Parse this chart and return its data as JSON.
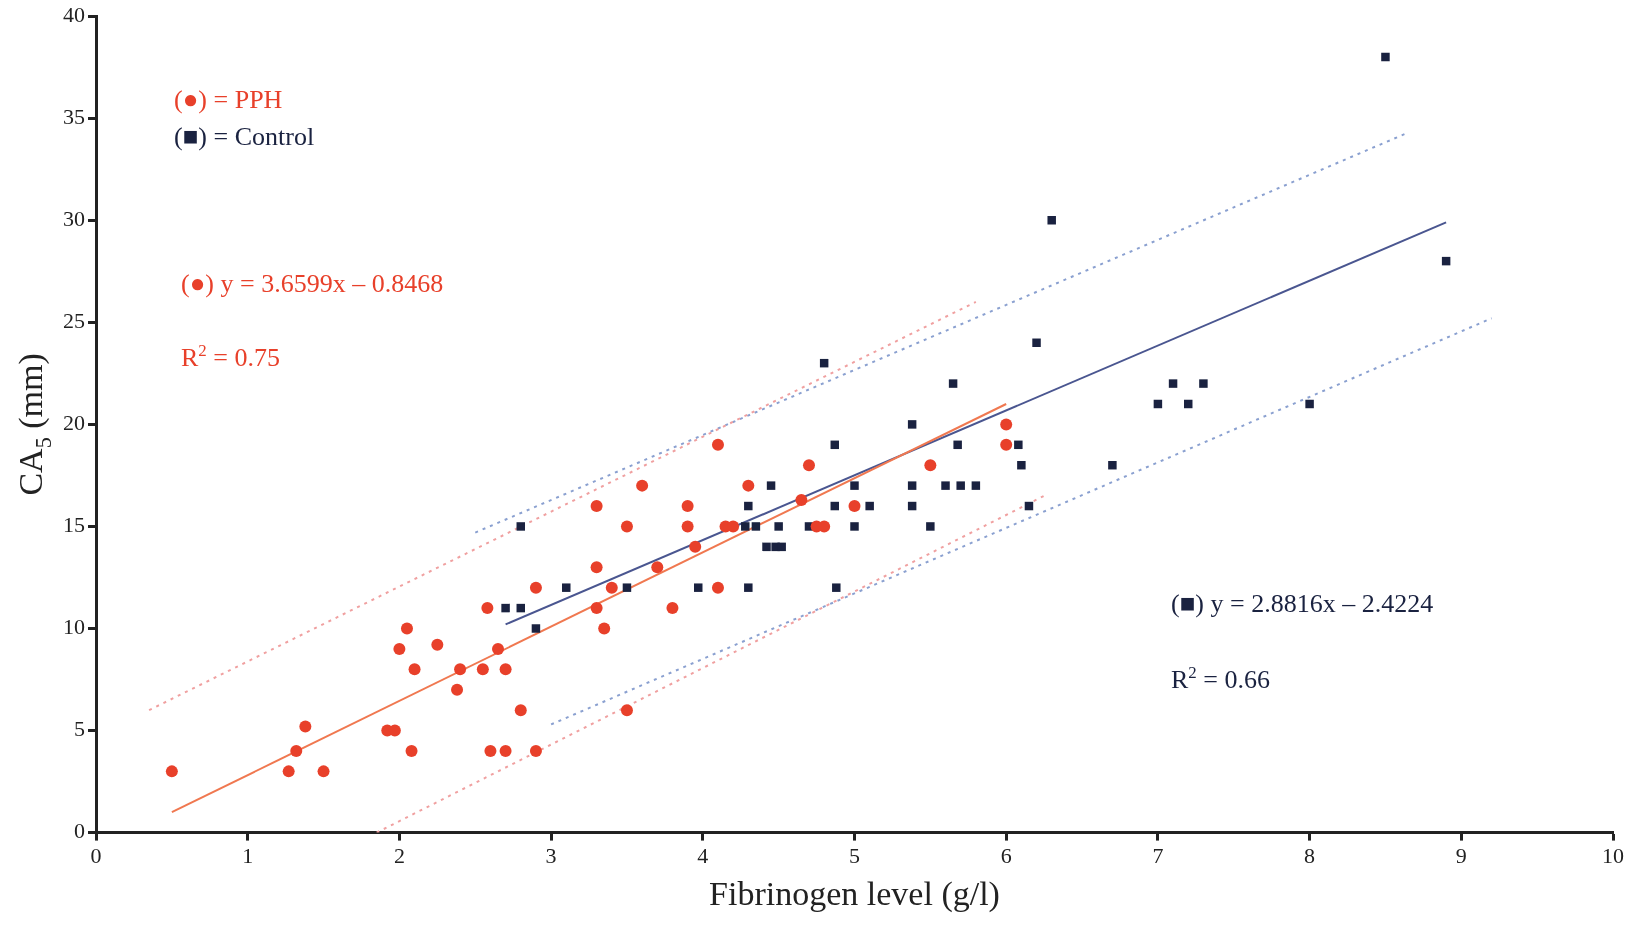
{
  "chart_data": {
    "type": "scatter",
    "xlabel": "Fibrinogen level (g/l)",
    "ylabel": "CA$_{5}$ (mm)",
    "xlim": [
      0,
      10
    ],
    "xticks": [
      0,
      1,
      2,
      3,
      4,
      5,
      6,
      7,
      8,
      9,
      10
    ],
    "ylim": [
      0,
      40
    ],
    "yticks": [
      0,
      5,
      10,
      15,
      20,
      25,
      30,
      35,
      40
    ],
    "grid": false,
    "annotations": [
      "(●) = PPH",
      "(■) = Control",
      "(●) y = 3.6599x – 0.8468",
      "R$^{2}$ = 0.75",
      "(■) y = 2.8816x – 2.4224",
      "R$^{2}$ = 0.66"
    ],
    "series": [
      {
        "color": "#e8402a",
        "marker": "circle",
        "x": [
          0.5,
          1.27,
          1.32,
          1.38,
          1.5,
          1.92,
          1.97,
          2.0,
          2.05,
          2.08,
          2.1,
          2.25,
          2.38,
          2.4,
          2.55,
          2.58,
          2.6,
          2.65,
          2.7,
          2.7,
          2.8,
          2.9,
          2.9,
          3.3,
          3.3,
          3.3,
          3.35,
          3.4,
          3.5,
          3.5,
          3.6,
          3.7,
          3.8,
          3.9,
          3.9,
          3.95,
          4.1,
          4.1,
          4.15,
          4.2,
          4.3,
          4.65,
          4.7,
          4.75,
          4.8,
          5.0,
          5.5,
          6.0,
          6.0
        ],
        "values": [
          3,
          3,
          4,
          5.2,
          3,
          5,
          5,
          9,
          10,
          4,
          8,
          9.2,
          7,
          8,
          8,
          11,
          4,
          9,
          4,
          8,
          6,
          12,
          4,
          16,
          13,
          11,
          10,
          12,
          15,
          6,
          17,
          13,
          11,
          16,
          15,
          14,
          19,
          12,
          15,
          15,
          17,
          16.3,
          18,
          15,
          15,
          16,
          18,
          20,
          19
        ]
      },
      {
        "color": "#1a2240",
        "marker": "square",
        "x": [
          2.7,
          2.8,
          2.8,
          2.9,
          3.1,
          3.5,
          3.97,
          4.28,
          4.3,
          4.3,
          4.35,
          4.42,
          4.45,
          4.48,
          4.5,
          4.52,
          4.7,
          4.8,
          4.87,
          4.87,
          4.88,
          5.0,
          5.0,
          5.1,
          5.38,
          5.38,
          5.38,
          5.5,
          5.6,
          5.65,
          5.68,
          5.7,
          5.8,
          6.08,
          6.1,
          6.15,
          6.2,
          6.3,
          6.7,
          7.0,
          7.1,
          7.2,
          7.3,
          8.0,
          8.5,
          8.9
        ],
        "values": [
          11,
          11,
          15,
          10,
          12,
          12,
          12,
          15,
          16,
          12,
          15,
          14,
          17,
          14,
          15,
          14,
          15,
          23,
          19,
          16,
          12,
          17,
          15,
          16,
          20,
          17,
          16,
          15,
          17,
          22,
          19,
          17,
          17,
          19,
          18,
          16,
          24,
          30,
          18,
          21,
          22,
          21,
          22,
          21,
          38,
          28
        ]
      },
      {
        "type": "line",
        "color": "#f07850",
        "marker": "none",
        "line_style": "solid",
        "x": [
          0.5,
          6.0
        ],
        "values": [
          1,
          21
        ]
      },
      {
        "type": "line",
        "color": "#4a5690",
        "marker": "none",
        "line_style": "solid",
        "x": [
          2.7,
          8.9
        ],
        "values": [
          10.2,
          29.9
        ]
      },
      {
        "type": "line",
        "color": "#f0a0a0",
        "marker": "none",
        "line_style": "dotted",
        "x": [
          0.35,
          5.8
        ],
        "values": [
          6,
          26
        ]
      },
      {
        "type": "line",
        "color": "#f0a0a0",
        "marker": "none",
        "line_style": "dotted",
        "x": [
          1.85,
          6.25
        ],
        "values": [
          0,
          16.5
        ]
      },
      {
        "type": "line",
        "color": "#8aa0d0",
        "marker": "none",
        "line_style": "dotted",
        "x": [
          2.5,
          8.65
        ],
        "values": [
          14.7,
          34.3
        ]
      },
      {
        "type": "line",
        "color": "#8aa0d0",
        "marker": "none",
        "line_style": "dotted",
        "x": [
          3.0,
          9.2
        ],
        "values": [
          5.3,
          25.2
        ]
      }
    ]
  }
}
